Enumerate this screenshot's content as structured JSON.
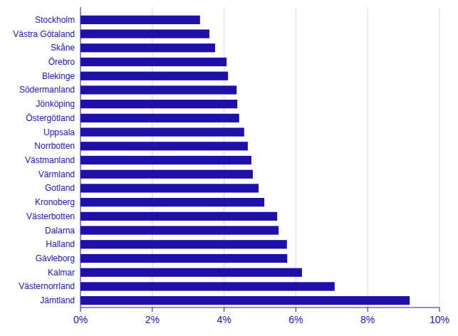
{
  "chart_data": {
    "type": "bar",
    "orientation": "horizontal",
    "categories": [
      "Stockholm",
      "Västra Götaland",
      "Skåne",
      "Örebro",
      "Blekinge",
      "Södermanland",
      "Jönköping",
      "Östergötland",
      "Uppsala",
      "Norrbotten",
      "Västmanland",
      "Värmland",
      "Gotland",
      "Kronoberg",
      "Västerbotten",
      "Dalarna",
      "Halland",
      "Gävleborg",
      "Kalmar",
      "Västernorrland",
      "Jämtland"
    ],
    "values": [
      3.33,
      3.59,
      3.75,
      4.07,
      4.11,
      4.35,
      4.37,
      4.42,
      4.56,
      4.66,
      4.76,
      4.8,
      4.96,
      5.12,
      5.48,
      5.52,
      5.75,
      5.76,
      6.17,
      7.08,
      9.17
    ],
    "color": "#1f10a8",
    "xlim": [
      0,
      10
    ],
    "xticks": [
      {
        "value": 0,
        "label": "0%"
      },
      {
        "value": 2,
        "label": "2%"
      },
      {
        "value": 4,
        "label": "4%"
      },
      {
        "value": 6,
        "label": "6%"
      },
      {
        "value": 8,
        "label": "8%"
      },
      {
        "value": 10,
        "label": "10%"
      }
    ],
    "grid": true
  }
}
